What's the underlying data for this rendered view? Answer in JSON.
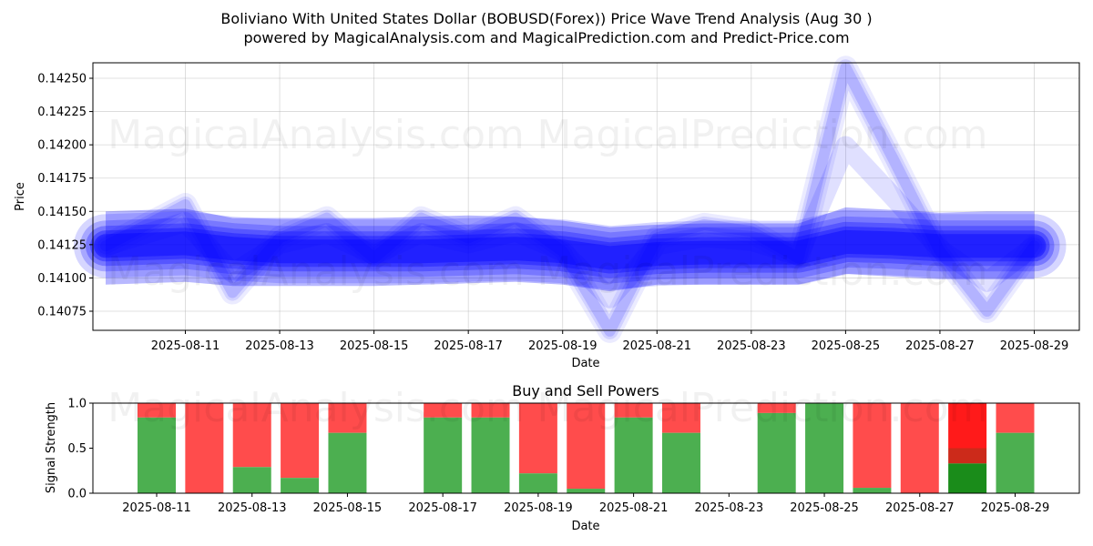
{
  "title_line1": "Boliviano With United States Dollar (BOBUSD(Forex)) Price Wave Trend Analysis (Aug 30 )",
  "title_line2": "powered by MagicalAnalysis.com and MagicalPrediction.com and Predict-Price.com",
  "watermarks": [
    "MagicalAnalysis.com",
    "MagicalPrediction.com"
  ],
  "colors": {
    "wave": "#0000ff",
    "buy": "#4caf50",
    "sell": "#ff4c4c",
    "strong_buy": "#1a8c1a",
    "strong_sell": "#ff1a1a"
  },
  "chart_data": [
    {
      "type": "area",
      "title": "",
      "xlabel": "Date",
      "ylabel": "Price",
      "x_range": [
        "2025-08-09",
        "2025-08-30"
      ],
      "ylim": [
        0.1406,
        0.1426
      ],
      "yticks": [
        "0.14075",
        "0.14100",
        "0.14125",
        "0.14150",
        "0.14175",
        "0.14200",
        "0.14225",
        "0.14250"
      ],
      "ytick_values": [
        0.14075,
        0.141,
        0.14125,
        0.1415,
        0.14175,
        0.142,
        0.14225,
        0.1425
      ],
      "xticks": [
        "2025-08-11",
        "2025-08-13",
        "2025-08-15",
        "2025-08-17",
        "2025-08-19",
        "2025-08-21",
        "2025-08-23",
        "2025-08-25",
        "2025-08-27",
        "2025-08-29"
      ],
      "grid": true,
      "dates": [
        "2025-08-10",
        "2025-08-11",
        "2025-08-12",
        "2025-08-13",
        "2025-08-14",
        "2025-08-15",
        "2025-08-16",
        "2025-08-17",
        "2025-08-18",
        "2025-08-19",
        "2025-08-20",
        "2025-08-21",
        "2025-08-22",
        "2025-08-23",
        "2025-08-24",
        "2025-08-25",
        "2025-08-26",
        "2025-08-27",
        "2025-08-28",
        "2025-08-29"
      ],
      "series": [
        {
          "name": "wave_center",
          "values": [
            0.14124,
            0.14126,
            0.14122,
            0.1412,
            0.1412,
            0.1412,
            0.1412,
            0.14121,
            0.14122,
            0.1412,
            0.14115,
            0.14118,
            0.14119,
            0.14119,
            0.14119,
            0.14127,
            0.14126,
            0.14124,
            0.14124,
            0.14124
          ]
        },
        {
          "name": "wave_outer_upper",
          "values": [
            0.1415,
            0.14152,
            0.14145,
            0.14145,
            0.14145,
            0.14145,
            0.14146,
            0.14147,
            0.14146,
            0.14143,
            0.14138,
            0.1414,
            0.14141,
            0.14141,
            0.14141,
            0.14153,
            0.14151,
            0.14149,
            0.1415,
            0.1415
          ]
        },
        {
          "name": "wave_outer_lower",
          "values": [
            0.14095,
            0.14097,
            0.14094,
            0.14094,
            0.14094,
            0.14094,
            0.14095,
            0.14096,
            0.14097,
            0.14095,
            0.1409,
            0.14095,
            0.14095,
            0.14095,
            0.14095,
            0.14103,
            0.14101,
            0.14099,
            0.14099,
            0.14099
          ]
        },
        {
          "name": "wave_excursion",
          "values": [
            0.14124,
            0.14155,
            0.14089,
            0.1413,
            0.14145,
            0.14115,
            0.14145,
            0.1413,
            0.14145,
            0.1412,
            0.1406,
            0.1413,
            0.1414,
            0.14135,
            0.14115,
            0.14258,
            0.1419,
            0.1412,
            0.14075,
            0.14124
          ]
        }
      ]
    },
    {
      "type": "bar",
      "title": "Buy and Sell Powers",
      "xlabel": "Date",
      "ylabel": "Signal Strength",
      "ylim": [
        0,
        1
      ],
      "yticks": [
        "0.0",
        "0.5",
        "1.0"
      ],
      "ytick_values": [
        0,
        0.5,
        1.0
      ],
      "xticks": [
        "2025-08-11",
        "2025-08-13",
        "2025-08-15",
        "2025-08-17",
        "2025-08-19",
        "2025-08-21",
        "2025-08-23",
        "2025-08-25",
        "2025-08-27",
        "2025-08-29"
      ],
      "grid": false,
      "bars": [
        {
          "date": "2025-08-11",
          "buy": 0.84
        },
        {
          "date": "2025-08-12",
          "buy": 0.0
        },
        {
          "date": "2025-08-13",
          "buy": 0.29
        },
        {
          "date": "2025-08-14",
          "buy": 0.17
        },
        {
          "date": "2025-08-15",
          "buy": 0.67
        },
        {
          "date": "2025-08-17",
          "buy": 0.84
        },
        {
          "date": "2025-08-18",
          "buy": 0.84
        },
        {
          "date": "2025-08-19",
          "buy": 0.22
        },
        {
          "date": "2025-08-20",
          "buy": 0.05
        },
        {
          "date": "2025-08-21",
          "buy": 0.84
        },
        {
          "date": "2025-08-22",
          "buy": 0.67
        },
        {
          "date": "2025-08-24",
          "buy": 0.89
        },
        {
          "date": "2025-08-25",
          "buy": 1.0
        },
        {
          "date": "2025-08-26",
          "buy": 0.06
        },
        {
          "date": "2025-08-27",
          "buy": 0.0
        },
        {
          "date": "2025-08-28",
          "buy": 0.33,
          "strong_buy": true,
          "strong_sell": true,
          "sell_split": 0.5
        },
        {
          "date": "2025-08-29",
          "buy": 0.67
        }
      ]
    }
  ]
}
